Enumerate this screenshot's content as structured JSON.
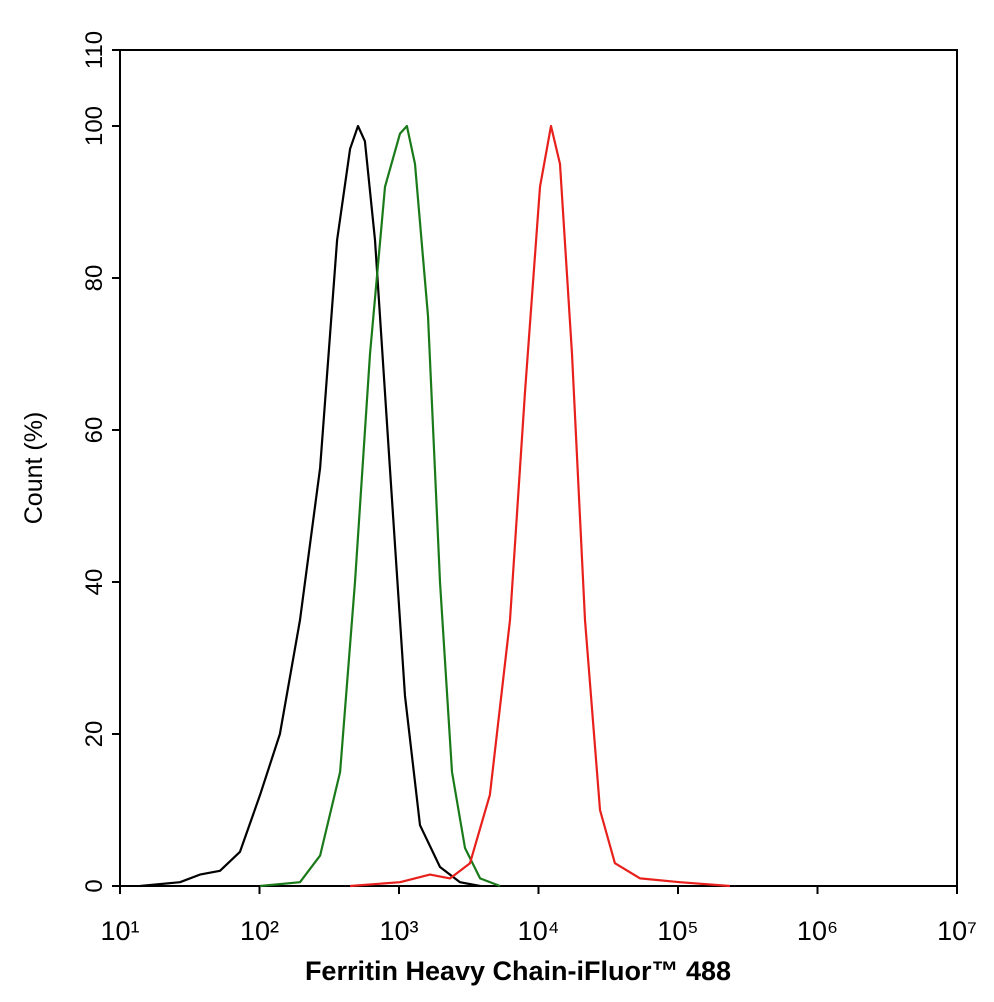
{
  "chart_data": {
    "type": "line",
    "xlabel": "Ferritin Heavy Chain-iFluor™ 488",
    "ylabel": "Count  (%)",
    "xscale": "log",
    "xlim": [
      10,
      10000000
    ],
    "ylim": [
      0,
      110
    ],
    "xticks": [
      {
        "value": 10,
        "label": "10¹"
      },
      {
        "value": 100,
        "label": "10²"
      },
      {
        "value": 1000,
        "label": "10³"
      },
      {
        "value": 10000,
        "label": "10⁴"
      },
      {
        "value": 100000,
        "label": "10⁵"
      },
      {
        "value": 1000000,
        "label": "10⁶"
      },
      {
        "value": 10000000,
        "label": "10⁷"
      }
    ],
    "yticks": [
      0,
      20,
      40,
      60,
      80,
      100,
      110
    ],
    "series": [
      {
        "color": "#000000",
        "x": [
          13.9,
          26.9,
          37.4,
          52.1,
          72.5,
          101,
          140,
          195,
          272,
          360,
          446,
          508,
          570,
          673,
          861,
          1104,
          1415,
          1967,
          2735,
          3811
        ],
        "values": [
          0,
          0.5,
          1.5,
          2,
          4.5,
          12,
          20,
          35,
          55,
          85,
          97,
          100,
          98,
          85,
          55,
          25,
          8,
          2.5,
          0.5,
          0
        ]
      },
      {
        "color": "#1a7a1a",
        "x": [
          101,
          195,
          272,
          378,
          484,
          620,
          794,
          1016,
          1140,
          1303,
          1614,
          1967,
          2400,
          2972,
          3811,
          5297
        ],
        "values": [
          0,
          0.5,
          4,
          15,
          40,
          70,
          92,
          99,
          100,
          95,
          75,
          40,
          15,
          5,
          1,
          0
        ]
      },
      {
        "color": "#e8201c",
        "x": [
          446,
          1016,
          1667,
          2323,
          3228,
          4487,
          6251,
          8000,
          10250,
          12300,
          14260,
          17380,
          21530,
          27600,
          35300,
          53500,
          103000,
          236000
        ],
        "values": [
          0,
          0.5,
          1.5,
          1,
          3,
          12,
          35,
          65,
          92,
          100,
          95,
          70,
          35,
          10,
          3,
          1,
          0.5,
          0
        ]
      }
    ]
  }
}
